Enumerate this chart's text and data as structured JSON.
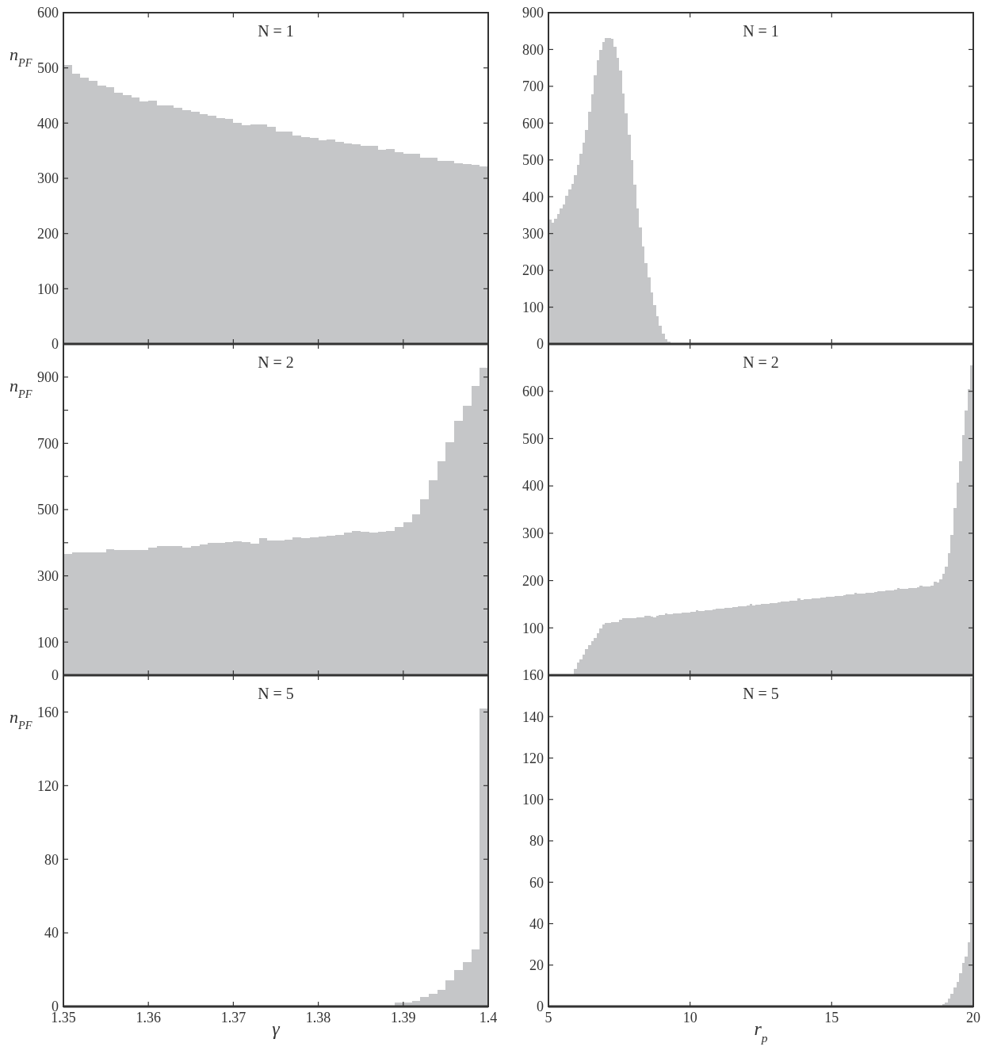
{
  "chart_data": [
    {
      "type": "histogram",
      "title": "N = 1",
      "ylabel": "n$_{PF}$",
      "color": "#c5c6c8",
      "tick_labels": "y",
      "bins": [
        1.35,
        1.351,
        1.352,
        1.353,
        1.354,
        1.355,
        1.356,
        1.357,
        1.358,
        1.359,
        1.36,
        1.361,
        1.362,
        1.363,
        1.364,
        1.365,
        1.366,
        1.367,
        1.368,
        1.369,
        1.37,
        1.371,
        1.372,
        1.373,
        1.374,
        1.375,
        1.376,
        1.377,
        1.378,
        1.379,
        1.38,
        1.381,
        1.382,
        1.383,
        1.384,
        1.385,
        1.386,
        1.387,
        1.388,
        1.389,
        1.39,
        1.391,
        1.392,
        1.393,
        1.394,
        1.395,
        1.396,
        1.397,
        1.398,
        1.399,
        1.4
      ],
      "values": [
        505,
        490,
        483,
        477,
        468,
        465,
        455,
        451,
        446,
        439,
        440,
        432,
        432,
        428,
        423,
        420,
        416,
        414,
        409,
        408,
        401,
        396,
        397,
        397,
        393,
        385,
        385,
        378,
        375,
        373,
        369,
        371,
        366,
        363,
        362,
        359,
        359,
        352,
        353,
        347,
        345,
        345,
        337,
        337,
        332,
        332,
        327,
        326,
        324,
        321
      ],
      "xlim": [
        1.35,
        1.4
      ],
      "xticks": [
        1.35,
        1.36,
        1.37,
        1.38,
        1.39,
        1.4
      ],
      "ylim": [
        0,
        600
      ],
      "yticks": [
        0,
        100,
        200,
        300,
        400,
        500,
        600
      ]
    },
    {
      "type": "histogram",
      "title": "N = 1",
      "color": "#c5c6c8",
      "tick_labels": "y",
      "bins": [
        5,
        5.1,
        5.2,
        5.3,
        5.4,
        5.5,
        5.6,
        5.7,
        5.8,
        5.9,
        6,
        6.1,
        6.2,
        6.3,
        6.4,
        6.5,
        6.6,
        6.7,
        6.8,
        6.9,
        7,
        7.1,
        7.2,
        7.3,
        7.4,
        7.5,
        7.6,
        7.7,
        7.8,
        7.9,
        8,
        8.1,
        8.2,
        8.3,
        8.4,
        8.5,
        8.6,
        8.7,
        8.8,
        8.9,
        9,
        9.1,
        9.2,
        9.3,
        9.4
      ],
      "values": [
        337,
        330,
        341,
        354,
        368,
        379,
        402,
        419,
        434,
        459,
        487,
        516,
        546,
        582,
        630,
        678,
        729,
        770,
        798,
        820,
        832,
        832,
        830,
        808,
        777,
        742,
        680,
        626,
        569,
        499,
        432,
        369,
        316,
        264,
        219,
        180,
        141,
        105,
        76,
        49,
        27,
        13,
        6,
        2
      ],
      "xlim": [
        5,
        20
      ],
      "xticks": [
        5,
        10,
        15,
        20
      ],
      "ylim": [
        0,
        900
      ],
      "yticks": [
        0,
        100,
        200,
        300,
        400,
        500,
        600,
        700,
        800,
        900
      ]
    },
    {
      "type": "histogram",
      "title": "N = 2",
      "ylabel": "n$_{PF}$",
      "color": "#c5c6c8",
      "tick_labels": "y",
      "bins": [
        1.35,
        1.351,
        1.352,
        1.353,
        1.354,
        1.355,
        1.356,
        1.357,
        1.358,
        1.359,
        1.36,
        1.361,
        1.362,
        1.363,
        1.364,
        1.365,
        1.366,
        1.367,
        1.368,
        1.369,
        1.37,
        1.371,
        1.372,
        1.373,
        1.374,
        1.375,
        1.376,
        1.377,
        1.378,
        1.379,
        1.38,
        1.381,
        1.382,
        1.383,
        1.384,
        1.385,
        1.386,
        1.387,
        1.388,
        1.389,
        1.39,
        1.391,
        1.392,
        1.393,
        1.394,
        1.395,
        1.396,
        1.397,
        1.398,
        1.399,
        1.4
      ],
      "values": [
        365,
        370,
        372,
        372,
        372,
        380,
        377,
        377,
        377,
        377,
        386,
        389,
        389,
        389,
        384,
        391,
        394,
        399,
        399,
        401,
        404,
        401,
        398,
        413,
        407,
        407,
        409,
        416,
        413,
        416,
        419,
        421,
        424,
        431,
        435,
        433,
        431,
        433,
        436,
        447,
        462,
        485,
        530,
        589,
        646,
        703,
        769,
        814,
        874,
        928
      ],
      "xlim": [
        1.35,
        1.4
      ],
      "xticks": [
        1.35,
        1.36,
        1.37,
        1.38,
        1.39,
        1.4
      ],
      "ylim": [
        0,
        1000
      ],
      "yticks": [
        0,
        100,
        {
          "value": 200,
          "label": null
        },
        300,
        {
          "value": 400,
          "label": null
        },
        500,
        {
          "value": 600,
          "label": null
        },
        700,
        {
          "value": 800,
          "label": null
        },
        900
      ]
    },
    {
      "type": "histogram",
      "title": "N = 2",
      "color": "#c5c6c8",
      "tick_labels": "y",
      "bins": [
        5.9,
        6,
        6.1,
        6.2,
        6.3,
        6.4,
        6.5,
        6.6,
        6.7,
        6.8,
        6.9,
        7,
        7.1,
        7.2,
        7.3,
        7.4,
        7.5,
        7.6,
        7.7,
        7.8,
        7.9,
        8,
        8.1,
        8.2,
        8.3,
        8.4,
        8.5,
        8.6,
        8.7,
        8.8,
        8.9,
        9,
        9.1,
        9.2,
        9.3,
        9.4,
        9.5,
        9.6,
        9.7,
        9.8,
        9.9,
        10,
        10.1,
        10.2,
        10.3,
        10.4,
        10.5,
        10.6,
        10.7,
        10.8,
        10.9,
        11,
        11.1,
        11.2,
        11.3,
        11.4,
        11.5,
        11.6,
        11.7,
        11.8,
        11.9,
        12,
        12.1,
        12.2,
        12.3,
        12.4,
        12.5,
        12.6,
        12.7,
        12.8,
        12.9,
        13,
        13.1,
        13.2,
        13.3,
        13.4,
        13.5,
        13.6,
        13.7,
        13.8,
        13.9,
        14,
        14.1,
        14.2,
        14.3,
        14.4,
        14.5,
        14.6,
        14.7,
        14.8,
        14.9,
        15,
        15.1,
        15.2,
        15.3,
        15.4,
        15.5,
        15.6,
        15.7,
        15.8,
        15.9,
        16,
        16.1,
        16.2,
        16.3,
        16.4,
        16.5,
        16.6,
        16.7,
        16.8,
        16.9,
        17,
        17.1,
        17.2,
        17.3,
        17.4,
        17.5,
        17.6,
        17.7,
        17.8,
        17.9,
        18,
        18.1,
        18.2,
        18.3,
        18.4,
        18.5,
        18.6,
        18.7,
        18.8,
        18.9,
        19,
        19.1,
        19.2,
        19.3,
        19.4,
        19.5,
        19.6,
        19.7,
        19.8,
        19.9,
        20
      ],
      "values": [
        14,
        26,
        34,
        44,
        55,
        63,
        72,
        78,
        88,
        98,
        107,
        111,
        111,
        113,
        113,
        112,
        118,
        120,
        120,
        121,
        121,
        121,
        122,
        123,
        123,
        125,
        125,
        124,
        123,
        126,
        127,
        127,
        131,
        129,
        129,
        130,
        131,
        131,
        132,
        133,
        133,
        134,
        134,
        138,
        136,
        136,
        137,
        138,
        138,
        139,
        140,
        140,
        141,
        142,
        142,
        143,
        144,
        144,
        145,
        146,
        146,
        147,
        150,
        148,
        149,
        149,
        150,
        151,
        151,
        152,
        153,
        153,
        154,
        155,
        155,
        156,
        157,
        157,
        158,
        162,
        159,
        160,
        160,
        161,
        162,
        162,
        163,
        164,
        164,
        165,
        166,
        166,
        167,
        168,
        168,
        169,
        170,
        170,
        171,
        175,
        172,
        173,
        173,
        174,
        175,
        175,
        176,
        177,
        177,
        178,
        179,
        179,
        180,
        181,
        184,
        182,
        183,
        183,
        184,
        185,
        185,
        186,
        190,
        187,
        188,
        188,
        189,
        198,
        196,
        203,
        214,
        229,
        258,
        297,
        353,
        407,
        452,
        508,
        559,
        605,
        655
      ],
      "xlim": [
        5,
        20
      ],
      "xticks": [
        5,
        10,
        15,
        20
      ],
      "ylim": [
        0,
        700
      ],
      "yticks": [
        {
          "value": 0,
          "label": null
        },
        100,
        200,
        300,
        400,
        500,
        600
      ]
    },
    {
      "type": "histogram",
      "title": "N = 5",
      "ylabel": "n$_{PF}$",
      "xlabel": "γ",
      "color": "#c5c6c8",
      "bins": [
        1.389,
        1.39,
        1.391,
        1.392,
        1.393,
        1.394,
        1.395,
        1.396,
        1.397,
        1.398,
        1.399,
        1.4
      ],
      "values": [
        2,
        2,
        3,
        5,
        7,
        9,
        14,
        20,
        24,
        31,
        162
      ],
      "xlim": [
        1.35,
        1.4
      ],
      "xticks": [
        1.35,
        1.36,
        1.37,
        1.38,
        1.39,
        1.4
      ],
      "ylim": [
        0,
        180
      ],
      "yticks": [
        0,
        40,
        80,
        120,
        160
      ]
    },
    {
      "type": "histogram",
      "title": "N = 5",
      "xlabel": "r$_{p}$",
      "color": "#c5c6c8",
      "bins": [
        18.9,
        19,
        19.1,
        19.2,
        19.3,
        19.4,
        19.5,
        19.6,
        19.7,
        19.8,
        19.9,
        20
      ],
      "values": [
        1,
        2,
        4,
        6,
        9,
        12,
        16,
        21,
        24,
        31,
        159
      ],
      "xlim": [
        5,
        20
      ],
      "xticks": [
        5,
        10,
        15,
        20
      ],
      "ylim": [
        0,
        160
      ],
      "yticks": [
        0,
        20,
        40,
        60,
        80,
        100,
        120,
        140,
        160
      ]
    }
  ]
}
